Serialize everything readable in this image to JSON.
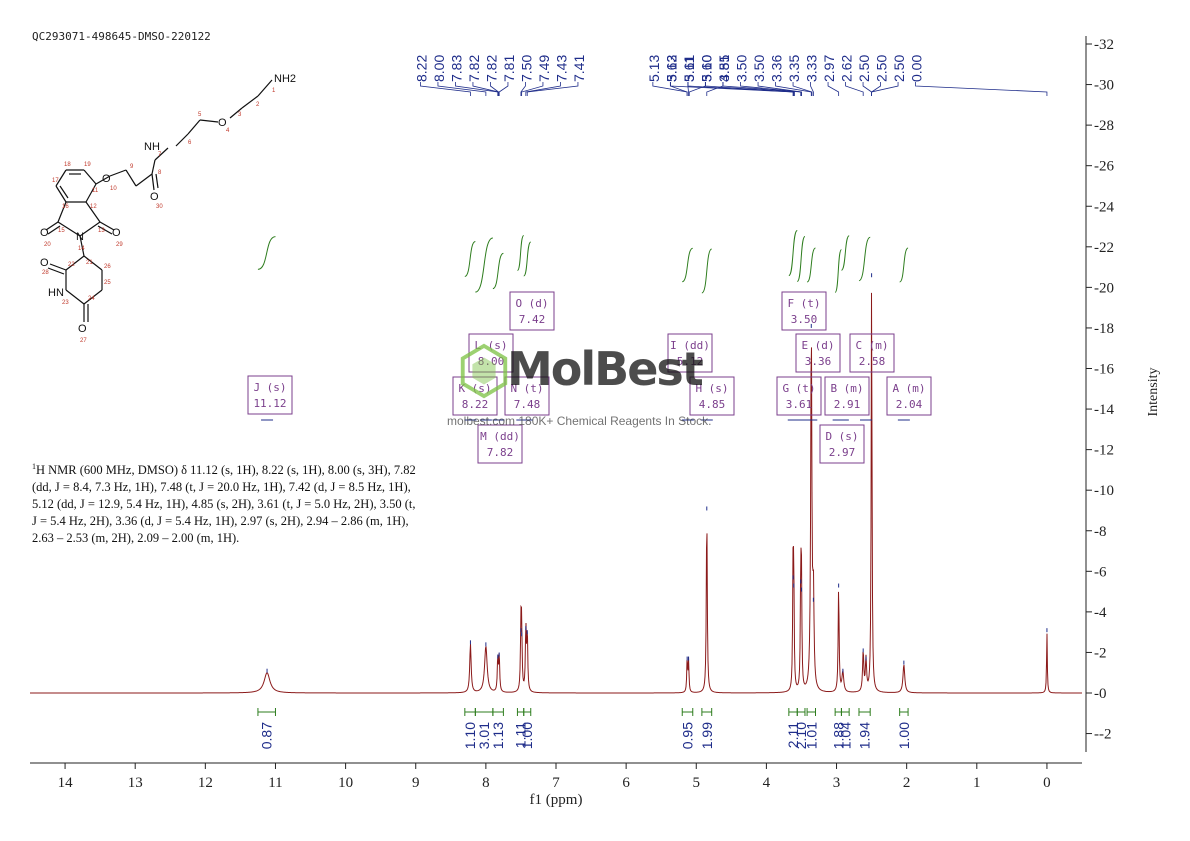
{
  "sample_id": "QC293071-498645-DMSO-220122",
  "watermark": {
    "name": "MolBest",
    "tagline": "molbest.com 180K+ Chemical Reagents In Stock."
  },
  "nmr_description": {
    "prefix": "1",
    "text": "H NMR (600 MHz, DMSO) δ 11.12 (s, 1H), 8.22 (s, 1H), 8.00 (s, 3H), 7.82 (dd, J = 8.4, 7.3 Hz, 1H), 7.48 (t, J = 20.0 Hz, 1H), 7.42 (d, J = 8.5 Hz, 1H), 5.12 (dd, J = 12.9, 5.4 Hz, 1H), 4.85 (s, 2H), 3.61 (t, J = 5.0 Hz, 2H), 3.50 (t, J = 5.4 Hz, 2H), 3.36 (d, J = 5.4 Hz, 1H), 2.97 (s, 2H), 2.94 – 2.86 (m, 1H), 2.63 – 2.53 (m, 2H), 2.09 – 2.00 (m, 1H)."
  },
  "structure": {
    "atoms": [
      "NH2",
      "NH",
      "O",
      "O",
      "O",
      "O",
      "O",
      "O",
      "N",
      "HN",
      "O"
    ],
    "numbers": [
      "1",
      "2",
      "3",
      "4",
      "5",
      "6",
      "7",
      "8",
      "9",
      "10",
      "11",
      "12",
      "13",
      "14",
      "15",
      "16",
      "17",
      "18",
      "19",
      "20",
      "21",
      "22",
      "23",
      "24",
      "25",
      "26",
      "27",
      "28",
      "29",
      "30"
    ]
  },
  "colors": {
    "spectrum": "#8b1a1a",
    "integral": "#2e7d1e",
    "labels": "#1f2d8a",
    "multiplet_box": "#7b3f8c",
    "axis": "#222222"
  },
  "chart_data": {
    "type": "line",
    "xlabel": "f1 (ppm)",
    "ylabel": "Intensity",
    "xlim": [
      14.5,
      -0.5
    ],
    "ylim": [
      -3,
      32.5
    ],
    "x_ticks": [
      14,
      13,
      12,
      11,
      10,
      9,
      8,
      7,
      6,
      5,
      4,
      3,
      2,
      1,
      0
    ],
    "y_ticks": [
      -2,
      0,
      2,
      4,
      6,
      8,
      10,
      12,
      14,
      16,
      18,
      20,
      22,
      24,
      26,
      28,
      30,
      32
    ],
    "peaks": [
      {
        "x": 11.12,
        "h": 1.0,
        "w": 0.05
      },
      {
        "x": 8.22,
        "h": 2.4,
        "w": 0.012
      },
      {
        "x": 8.0,
        "h": 2.3,
        "w": 0.022
      },
      {
        "x": 7.83,
        "h": 1.7,
        "w": 0.008
      },
      {
        "x": 7.81,
        "h": 1.8,
        "w": 0.008
      },
      {
        "x": 7.5,
        "h": 3.0,
        "w": 0.008
      },
      {
        "x": 7.49,
        "h": 2.8,
        "w": 0.008
      },
      {
        "x": 7.43,
        "h": 3.1,
        "w": 0.008
      },
      {
        "x": 7.41,
        "h": 2.9,
        "w": 0.008
      },
      {
        "x": 5.13,
        "h": 1.6,
        "w": 0.007
      },
      {
        "x": 5.11,
        "h": 1.6,
        "w": 0.007
      },
      {
        "x": 4.85,
        "h": 9.0,
        "w": 0.008
      },
      {
        "x": 3.62,
        "h": 5.6,
        "w": 0.007
      },
      {
        "x": 3.61,
        "h": 5.2,
        "w": 0.007
      },
      {
        "x": 3.51,
        "h": 5.4,
        "w": 0.007
      },
      {
        "x": 3.5,
        "h": 5.0,
        "w": 0.007
      },
      {
        "x": 3.36,
        "h": 18.0,
        "w": 0.01
      },
      {
        "x": 3.33,
        "h": 4.5,
        "w": 0.01
      },
      {
        "x": 2.97,
        "h": 5.2,
        "w": 0.008
      },
      {
        "x": 2.91,
        "h": 1.0,
        "w": 0.015
      },
      {
        "x": 2.62,
        "h": 2.0,
        "w": 0.01
      },
      {
        "x": 2.58,
        "h": 1.6,
        "w": 0.01
      },
      {
        "x": 2.5,
        "h": 20.5,
        "w": 0.007
      },
      {
        "x": 2.04,
        "h": 1.4,
        "w": 0.015
      },
      {
        "x": 0.0,
        "h": 3.0,
        "w": 0.006
      }
    ],
    "peak_labels_groups": [
      {
        "values": [
          "8.22",
          "8.00",
          "7.83",
          "7.82",
          "7.82",
          "7.81",
          "7.50",
          "7.49",
          "7.43",
          "7.41"
        ],
        "center": 7.81
      },
      {
        "values": [
          "5.13",
          "5.13",
          "5.11",
          "5.10",
          "4.85"
        ],
        "center": 5.12
      },
      {
        "values": [
          "3.62",
          "3.61",
          "3.60",
          "3.51",
          "3.50",
          "3.50",
          "3.36",
          "3.35",
          "3.33",
          "2.97",
          "2.62",
          "2.50",
          "2.50",
          "2.50",
          "0.00"
        ],
        "center": 3.62
      }
    ],
    "integrals": [
      {
        "from": 11.25,
        "to": 11.0,
        "value": "0.87"
      },
      {
        "from": 8.3,
        "to": 8.15,
        "value": "1.10"
      },
      {
        "from": 8.15,
        "to": 7.9,
        "value": "3.01"
      },
      {
        "from": 7.9,
        "to": 7.75,
        "value": "1.13"
      },
      {
        "from": 7.55,
        "to": 7.46,
        "value": "1.11"
      },
      {
        "from": 7.46,
        "to": 7.36,
        "value": "1.00"
      },
      {
        "from": 5.2,
        "to": 5.05,
        "value": "0.95"
      },
      {
        "from": 4.92,
        "to": 4.78,
        "value": "1.99"
      },
      {
        "from": 3.68,
        "to": 3.56,
        "value": "2.11"
      },
      {
        "from": 3.56,
        "to": 3.45,
        "value": "2.10"
      },
      {
        "from": 3.42,
        "to": 3.3,
        "value": "1.01"
      },
      {
        "from": 3.02,
        "to": 2.93,
        "value": "1.88"
      },
      {
        "from": 2.93,
        "to": 2.82,
        "value": "1.04"
      },
      {
        "from": 2.68,
        "to": 2.52,
        "value": "1.94"
      },
      {
        "from": 2.1,
        "to": 1.98,
        "value": "1.00"
      }
    ],
    "multiplets": [
      {
        "letter": "J",
        "mult": "s",
        "shift": "11.12"
      },
      {
        "letter": "K",
        "mult": "s",
        "shift": "8.22"
      },
      {
        "letter": "L",
        "mult": "s",
        "shift": "8.00"
      },
      {
        "letter": "N",
        "mult": "t",
        "shift": "7.48"
      },
      {
        "letter": "O",
        "mult": "d",
        "shift": "7.42"
      },
      {
        "letter": "M",
        "mult": "dd",
        "shift": "7.82"
      },
      {
        "letter": "I",
        "mult": "dd",
        "shift": "5.12"
      },
      {
        "letter": "H",
        "mult": "s",
        "shift": "4.85"
      },
      {
        "letter": "G",
        "mult": "t",
        "shift": "3.61"
      },
      {
        "letter": "F",
        "mult": "t",
        "shift": "3.50"
      },
      {
        "letter": "E",
        "mult": "d",
        "shift": "3.36"
      },
      {
        "letter": "D",
        "mult": "s",
        "shift": "2.97"
      },
      {
        "letter": "B",
        "mult": "m",
        "shift": "2.91"
      },
      {
        "letter": "C",
        "mult": "m",
        "shift": "2.58"
      },
      {
        "letter": "A",
        "mult": "m",
        "shift": "2.04"
      }
    ]
  }
}
